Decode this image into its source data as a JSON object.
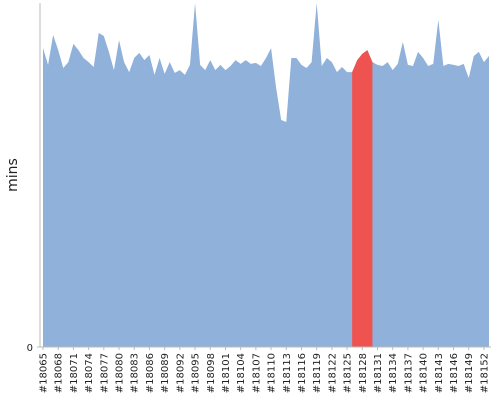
{
  "chart_data": {
    "type": "area",
    "y_label": "mins",
    "categories": [
      "#18065",
      null,
      null,
      "#18068",
      null,
      null,
      "#18071",
      null,
      null,
      "#18074",
      null,
      null,
      "#18077",
      null,
      null,
      "#18080",
      null,
      null,
      "#18083",
      null,
      null,
      "#18086",
      null,
      null,
      "#18089",
      null,
      null,
      "#18092",
      null,
      null,
      "#18095",
      null,
      null,
      "#18098",
      null,
      null,
      "#18101",
      null,
      null,
      "#18104",
      null,
      null,
      "#18107",
      null,
      null,
      "#18110",
      null,
      null,
      "#18113",
      null,
      null,
      "#18116",
      null,
      null,
      "#18119",
      null,
      null,
      "#18122",
      null,
      null,
      "#18125",
      null,
      null,
      "#18128",
      null,
      null,
      "#18131",
      null,
      null,
      "#18134",
      null,
      null,
      "#18137",
      null,
      null,
      "#18140",
      null,
      null,
      "#18143",
      null,
      null,
      "#18146",
      null,
      null,
      "#18149",
      null,
      null,
      "#18152",
      null
    ],
    "values": [
      86.9,
      82.0,
      90.7,
      86.3,
      81.1,
      82.8,
      88.1,
      86.3,
      84.0,
      82.8,
      81.4,
      91.3,
      90.4,
      85.8,
      80.5,
      89.2,
      82.8,
      79.9,
      84.0,
      85.5,
      83.4,
      84.9,
      79.1,
      84.0,
      79.4,
      82.8,
      79.7,
      80.5,
      79.1,
      82.0,
      100,
      82.0,
      80.5,
      83.4,
      80.5,
      82.0,
      80.5,
      81.7,
      83.4,
      82.3,
      83.4,
      82.3,
      82.6,
      81.7,
      84.0,
      86.9,
      75.3,
      66.0,
      65.4,
      84.0,
      84.0,
      82.0,
      81.1,
      82.8,
      100,
      81.7,
      84.0,
      82.8,
      79.9,
      81.4,
      79.9,
      79.9,
      83.4,
      85.2,
      86.3,
      82.8,
      82.0,
      81.7,
      82.8,
      80.5,
      82.3,
      88.7,
      82.0,
      81.7,
      85.8,
      84.0,
      81.7,
      82.3,
      95.1,
      81.7,
      82.3,
      82.0,
      81.7,
      82.3,
      78.2,
      84.6,
      85.8,
      82.8,
      84.6
    ],
    "color": "#8fb1da",
    "highlight_indices": [
      61,
      62,
      63,
      64,
      65
    ],
    "highlight_color": "#ef5350",
    "ylim": [
      0,
      100
    ],
    "yticks": [
      0
    ]
  }
}
